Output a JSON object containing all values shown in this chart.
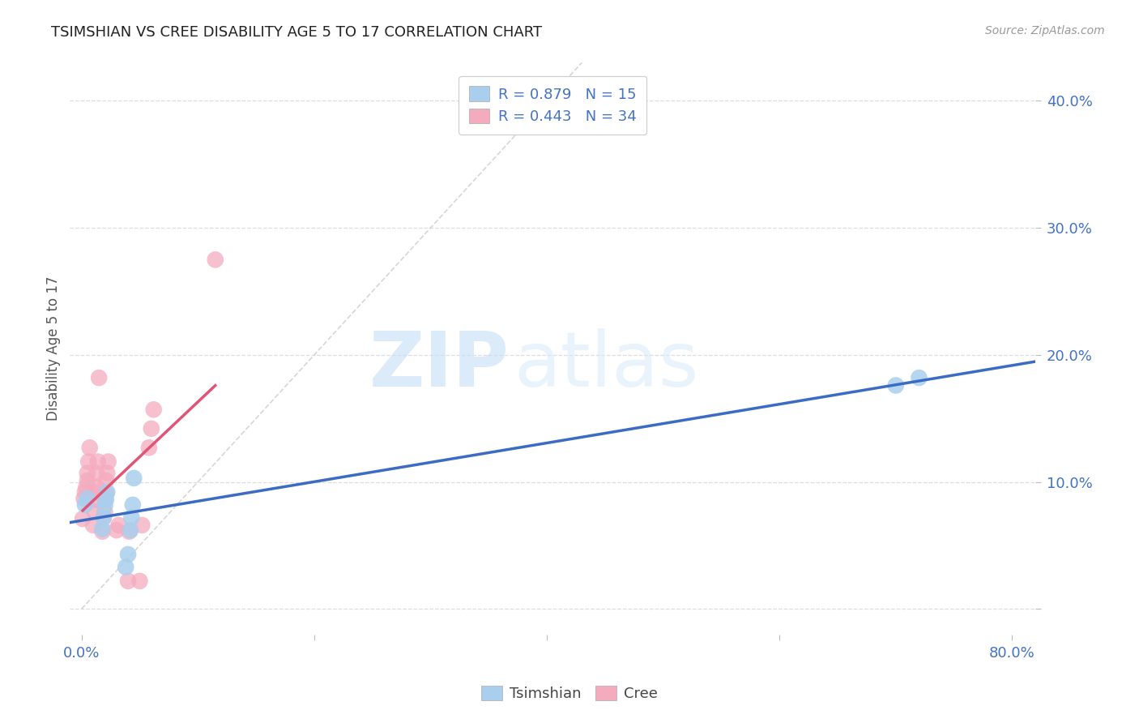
{
  "title": "TSIMSHIAN VS CREE DISABILITY AGE 5 TO 17 CORRELATION CHART",
  "source": "Source: ZipAtlas.com",
  "xlabel": "",
  "ylabel": "Disability Age 5 to 17",
  "xlim": [
    -0.01,
    0.82
  ],
  "ylim": [
    -0.02,
    0.43
  ],
  "xticks": [
    0.0,
    0.2,
    0.4,
    0.6,
    0.8
  ],
  "yticks": [
    0.0,
    0.1,
    0.2,
    0.3,
    0.4
  ],
  "ytick_labels": [
    "",
    "10.0%",
    "20.0%",
    "30.0%",
    "40.0%"
  ],
  "xtick_labels": [
    "0.0%",
    "",
    "",
    "",
    "80.0%"
  ],
  "background_color": "#ffffff",
  "grid_color": "#dddddd",
  "tsimshian_color": "#aacfee",
  "cree_color": "#f4abbe",
  "tsimshian_line_color": "#3b6cc4",
  "cree_line_color": "#e05575",
  "diagonal_color": "#cccccc",
  "R_tsimshian": 0.879,
  "N_tsimshian": 15,
  "R_cree": 0.443,
  "N_cree": 34,
  "legend_label_tsimshian": "Tsimshian",
  "legend_label_cree": "Cree",
  "watermark_zip": "ZIP",
  "watermark_atlas": "atlas",
  "tsimshian_x": [
    0.003,
    0.005,
    0.018,
    0.019,
    0.02,
    0.021,
    0.022,
    0.038,
    0.04,
    0.042,
    0.043,
    0.044,
    0.045,
    0.7,
    0.72
  ],
  "tsimshian_y": [
    0.082,
    0.087,
    0.063,
    0.072,
    0.081,
    0.086,
    0.092,
    0.033,
    0.043,
    0.062,
    0.072,
    0.082,
    0.103,
    0.176,
    0.182
  ],
  "cree_x": [
    0.001,
    0.002,
    0.003,
    0.004,
    0.005,
    0.005,
    0.006,
    0.007,
    0.01,
    0.011,
    0.012,
    0.012,
    0.013,
    0.013,
    0.014,
    0.015,
    0.018,
    0.019,
    0.02,
    0.02,
    0.021,
    0.021,
    0.022,
    0.023,
    0.03,
    0.032,
    0.04,
    0.041,
    0.05,
    0.052,
    0.058,
    0.06,
    0.062,
    0.115
  ],
  "cree_y": [
    0.071,
    0.087,
    0.092,
    0.096,
    0.101,
    0.107,
    0.116,
    0.127,
    0.066,
    0.077,
    0.086,
    0.092,
    0.096,
    0.107,
    0.116,
    0.182,
    0.061,
    0.072,
    0.076,
    0.086,
    0.091,
    0.101,
    0.107,
    0.116,
    0.062,
    0.066,
    0.022,
    0.061,
    0.022,
    0.066,
    0.127,
    0.142,
    0.157,
    0.275
  ]
}
